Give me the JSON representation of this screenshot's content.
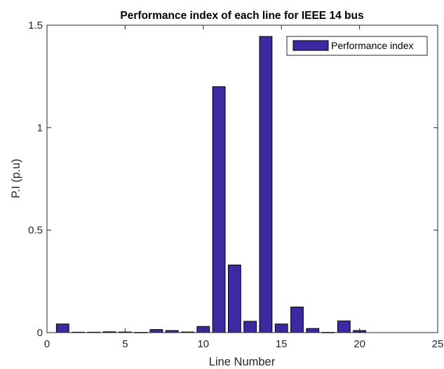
{
  "chart_data": {
    "type": "bar",
    "title": "Performance index of each line for IEEE 14 bus",
    "xlabel": "Line Number",
    "ylabel": "P.I (p.u)",
    "xlim": [
      0,
      25
    ],
    "ylim": [
      0,
      1.5
    ],
    "xticks": [
      "0",
      "5",
      "10",
      "15",
      "20",
      "25"
    ],
    "yticks": [
      "0",
      "0.5",
      "1",
      "1.5"
    ],
    "legend_position": "top-right",
    "grid": false,
    "series": [
      {
        "name": "Performance index",
        "color": "#3d2aa3",
        "x": [
          1,
          2,
          3,
          4,
          5,
          6,
          7,
          8,
          9,
          10,
          11,
          12,
          13,
          14,
          15,
          16,
          17,
          18,
          19,
          20
        ],
        "values": [
          0.042,
          0.002,
          0.002,
          0.004,
          0.003,
          0.001,
          0.015,
          0.01,
          0.003,
          0.03,
          1.2,
          0.33,
          0.055,
          1.445,
          0.042,
          0.125,
          0.02,
          0.001,
          0.057,
          0.01
        ]
      }
    ]
  }
}
